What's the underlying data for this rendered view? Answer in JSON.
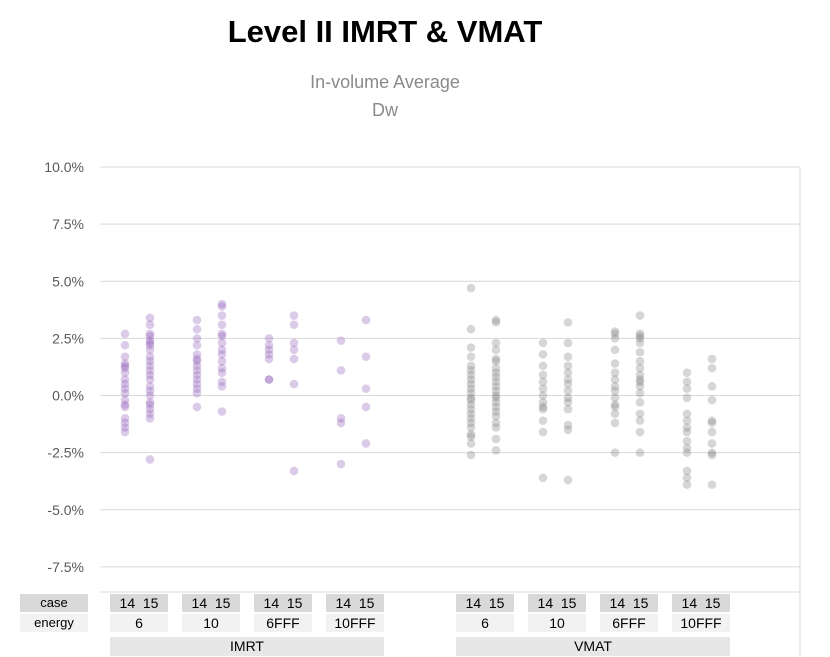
{
  "chart_data": {
    "type": "scatter",
    "title": "Level II IMRT & VMAT",
    "subtitle": [
      "In-volume Average",
      "Dw"
    ],
    "ylim": [
      -0.1,
      0.1
    ],
    "yticks": [
      "10.0%",
      "7.5%",
      "5.0%",
      "2.5%",
      "0.0%",
      "-2.5%",
      "-5.0%",
      "-7.5%"
    ],
    "ytick_values": [
      0.1,
      0.075,
      0.05,
      0.025,
      0.0,
      -0.025,
      -0.05,
      -0.075
    ],
    "grid": true,
    "category_axis": {
      "row_labels": [
        "case",
        "energy"
      ],
      "cases": [
        "14",
        "15"
      ],
      "groups": [
        {
          "name": "IMRT",
          "energies": [
            "6",
            "10",
            "6FFF",
            "10FFF"
          ]
        },
        {
          "name": "VMAT",
          "energies": [
            "6",
            "10",
            "6FFF",
            "10FFF"
          ]
        }
      ]
    },
    "series": [
      {
        "color": "#8e5cb8",
        "points": [
          {
            "group": "IMRT",
            "energy": "6",
            "case": "14",
            "values": [
              0.027,
              0.022,
              0.017,
              0.014,
              0.013,
              0.012,
              0.01,
              0.007,
              0.005,
              0.003,
              0.001,
              -0.002,
              -0.004,
              -0.005,
              -0.01,
              -0.012,
              -0.014,
              -0.016
            ]
          },
          {
            "group": "IMRT",
            "energy": "6",
            "case": "15",
            "values": [
              0.034,
              0.031,
              0.027,
              0.026,
              0.024,
              0.023,
              0.022,
              0.02,
              0.017,
              0.015,
              0.013,
              0.011,
              0.009,
              0.007,
              0.004,
              0.002,
              0.0,
              -0.003,
              -0.004,
              -0.006,
              -0.008,
              -0.01,
              -0.028
            ]
          },
          {
            "group": "IMRT",
            "energy": "10",
            "case": "14",
            "values": [
              0.033,
              0.029,
              0.025,
              0.022,
              0.018,
              0.016,
              0.015,
              0.013,
              0.011,
              0.009,
              0.007,
              0.005,
              0.003,
              0.001,
              -0.005
            ]
          },
          {
            "group": "IMRT",
            "energy": "10",
            "case": "15",
            "values": [
              0.04,
              0.039,
              0.035,
              0.031,
              0.027,
              0.026,
              0.023,
              0.02,
              0.018,
              0.015,
              0.012,
              0.01,
              0.006,
              0.004,
              -0.007
            ]
          },
          {
            "group": "IMRT",
            "energy": "6FFF",
            "case": "14",
            "values": [
              0.025,
              0.022,
              0.02,
              0.018,
              0.016,
              0.007,
              0.007
            ]
          },
          {
            "group": "IMRT",
            "energy": "6FFF",
            "case": "15",
            "values": [
              0.035,
              0.031,
              0.023,
              0.02,
              0.016,
              0.005,
              -0.033
            ]
          },
          {
            "group": "IMRT",
            "energy": "10FFF",
            "case": "14",
            "values": [
              0.024,
              0.011,
              -0.01,
              -0.012,
              -0.03
            ]
          },
          {
            "group": "IMRT",
            "energy": "10FFF",
            "case": "15",
            "values": [
              0.033,
              0.017,
              0.003,
              -0.005,
              -0.021
            ]
          }
        ]
      },
      {
        "color": "#7f7f7f",
        "points": [
          {
            "group": "VMAT",
            "energy": "6",
            "case": "14",
            "values": [
              0.047,
              0.029,
              0.021,
              0.017,
              0.013,
              0.011,
              0.009,
              0.007,
              0.005,
              0.003,
              0.001,
              -0.001,
              -0.002,
              -0.004,
              -0.006,
              -0.008,
              -0.01,
              -0.012,
              -0.014,
              -0.017,
              -0.018,
              -0.021,
              -0.026
            ]
          },
          {
            "group": "VMAT",
            "energy": "6",
            "case": "15",
            "values": [
              0.033,
              0.032,
              0.023,
              0.02,
              0.016,
              0.015,
              0.012,
              0.01,
              0.008,
              0.006,
              0.004,
              0.002,
              0.0,
              -0.001,
              -0.003,
              -0.005,
              -0.007,
              -0.009,
              -0.012,
              -0.014,
              -0.019,
              -0.024
            ]
          },
          {
            "group": "VMAT",
            "energy": "10",
            "case": "14",
            "values": [
              0.023,
              0.018,
              0.013,
              0.009,
              0.006,
              0.003,
              0.0,
              -0.003,
              -0.005,
              -0.006,
              -0.011,
              -0.016,
              -0.036
            ]
          },
          {
            "group": "VMAT",
            "energy": "10",
            "case": "15",
            "values": [
              0.032,
              0.023,
              0.017,
              0.013,
              0.01,
              0.007,
              0.005,
              0.002,
              -0.001,
              -0.003,
              -0.006,
              -0.013,
              -0.015,
              -0.037
            ]
          },
          {
            "group": "VMAT",
            "energy": "6FFF",
            "case": "14",
            "values": [
              0.028,
              0.027,
              0.025,
              0.02,
              0.014,
              0.01,
              0.007,
              0.004,
              0.002,
              -0.001,
              -0.004,
              -0.005,
              -0.008,
              -0.012,
              -0.025
            ]
          },
          {
            "group": "VMAT",
            "energy": "6FFF",
            "case": "15",
            "values": [
              0.035,
              0.027,
              0.026,
              0.025,
              0.023,
              0.019,
              0.015,
              0.012,
              0.009,
              0.007,
              0.006,
              0.004,
              0.001,
              -0.003,
              -0.008,
              -0.011,
              -0.016,
              -0.025
            ]
          },
          {
            "group": "VMAT",
            "energy": "10FFF",
            "case": "14",
            "values": [
              0.01,
              0.006,
              0.003,
              -0.001,
              -0.008,
              -0.011,
              -0.014,
              -0.016,
              -0.02,
              -0.023,
              -0.025,
              -0.033,
              -0.036,
              -0.039
            ]
          },
          {
            "group": "VMAT",
            "energy": "10FFF",
            "case": "15",
            "values": [
              0.016,
              0.012,
              0.004,
              -0.002,
              -0.011,
              -0.012,
              -0.016,
              -0.021,
              -0.025,
              -0.026,
              -0.039
            ]
          }
        ]
      }
    ]
  }
}
